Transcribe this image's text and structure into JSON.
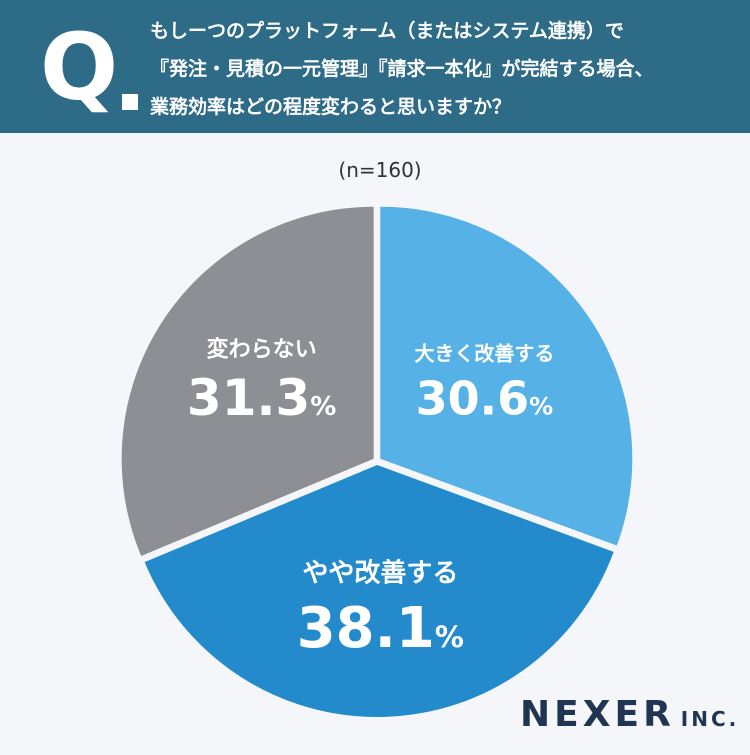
{
  "header": {
    "q_mark": "Q",
    "question_lines": [
      "もしーつのプラットフォーム（またはシステム連携）で",
      "『発注・見積の一元管理』『請求一本化』が完結する場合、",
      "業務効率はどの程度変わると思いますか？"
    ]
  },
  "sample_size": "(n=160)",
  "chart_data": {
    "type": "pie",
    "title": "",
    "slices": [
      {
        "label": "大きく改善する",
        "value": 30.6,
        "value_text": "30.6",
        "color": "#56b1e6"
      },
      {
        "label": "やや改善する",
        "value": 38.1,
        "value_text": "38.1",
        "color": "#238acb"
      },
      {
        "label": "変わらない",
        "value": 31.3,
        "value_text": "31.3",
        "color": "#8e8f94"
      }
    ],
    "unit": "%",
    "start": "12 o'clock, clockwise"
  },
  "brand": {
    "name": "NEXER",
    "suffix": "INC."
  },
  "colors": {
    "header_bg": "#2e6b87",
    "background": "#f5f6fa"
  }
}
